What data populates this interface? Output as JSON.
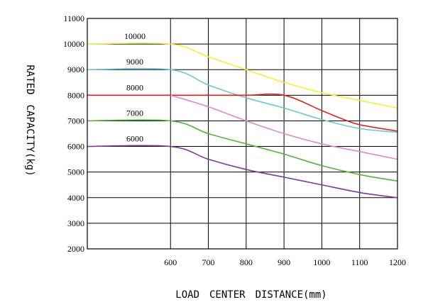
{
  "chart_data": {
    "type": "line",
    "xlabel": "LOAD　CENTER　DISTANCE(mm)",
    "ylabel": "RATED　CAPACITY(kg)",
    "xlim": [
      380,
      1200
    ],
    "ylim": [
      2000,
      11000
    ],
    "x_ticks": [
      600,
      700,
      800,
      900,
      1000,
      1100,
      1200
    ],
    "y_ticks": [
      2000,
      3000,
      4000,
      5000,
      6000,
      7000,
      8000,
      9000,
      10000,
      11000
    ],
    "grid": true,
    "series": [
      {
        "name": "10000",
        "color": "#f2ee3a",
        "x": [
          380,
          600,
          700,
          800,
          900,
          1000,
          1100,
          1200
        ],
        "y": [
          10000,
          10000,
          9500,
          9000,
          8500,
          8100,
          7800,
          7500
        ]
      },
      {
        "name": "9000",
        "color": "#6ec6d2",
        "x": [
          380,
          600,
          700,
          800,
          900,
          1000,
          1100,
          1200
        ],
        "y": [
          9000,
          9000,
          8400,
          7900,
          7500,
          7050,
          6700,
          6550
        ]
      },
      {
        "name": "8000",
        "color": "#e02020",
        "x": [
          380,
          600,
          700,
          800,
          900,
          1000,
          1050,
          1100,
          1200
        ],
        "y": [
          8000,
          8000,
          8000,
          8000,
          8000,
          7400,
          7100,
          6850,
          6600
        ]
      },
      {
        "name": "",
        "color": "#e08ac0",
        "x": [
          600,
          700,
          800,
          900,
          1000,
          1100,
          1200
        ],
        "y": [
          8000,
          7550,
          7000,
          6500,
          6100,
          5800,
          5500
        ]
      },
      {
        "name": "7000",
        "color": "#4fb53a",
        "x": [
          380,
          600,
          700,
          800,
          900,
          1000,
          1100,
          1200
        ],
        "y": [
          7000,
          7000,
          6500,
          6100,
          5700,
          5250,
          4900,
          4650
        ]
      },
      {
        "name": "6000",
        "color": "#7a3a9a",
        "x": [
          380,
          600,
          700,
          800,
          900,
          1000,
          1100,
          1200
        ],
        "y": [
          6000,
          6000,
          5500,
          5100,
          4800,
          4500,
          4200,
          4000
        ]
      }
    ]
  }
}
